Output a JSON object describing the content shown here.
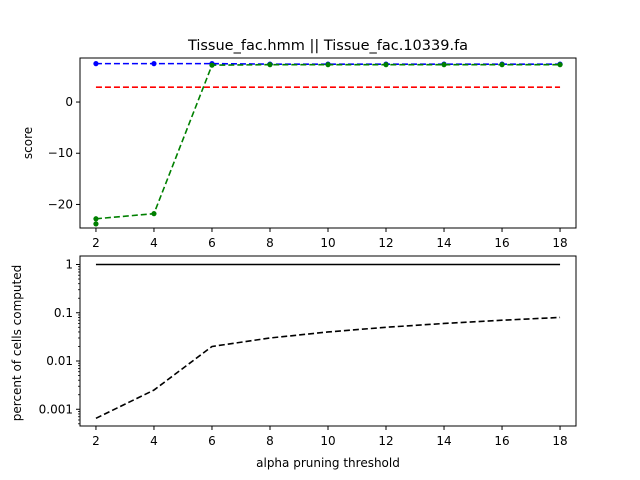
{
  "chart_data": [
    {
      "type": "line",
      "title": "Tissue_fac.hmm || Tissue_fac.10339.fa",
      "xlabel": "",
      "ylabel": "score",
      "xlim": [
        1.45,
        18.55
      ],
      "ylim": [
        -24.6,
        8.6
      ],
      "xticks": [
        2,
        4,
        6,
        8,
        10,
        12,
        14,
        16,
        18
      ],
      "xtick_labels": [
        "2",
        "4",
        "6",
        "8",
        "10",
        "12",
        "14",
        "16",
        "18"
      ],
      "yticks": [
        0,
        -10,
        -20
      ],
      "ytick_labels": [
        "0",
        "−10",
        "−20"
      ],
      "grid": false,
      "series": [
        {
          "color": "#0000ff",
          "style": "dashed",
          "markers": true,
          "x": [
            2,
            4,
            6,
            8,
            10,
            12,
            14,
            16,
            18
          ],
          "y": [
            7.5,
            7.5,
            7.5,
            7.4,
            7.4,
            7.4,
            7.4,
            7.4,
            7.4
          ]
        },
        {
          "color": "#ff0000",
          "style": "dashed",
          "markers": false,
          "x": [
            2,
            18
          ],
          "y": [
            2.9,
            2.9
          ]
        },
        {
          "color": "#008000",
          "style": "dashed",
          "markers": true,
          "x": [
            2,
            4,
            6,
            8,
            10,
            12,
            14,
            16,
            18
          ],
          "y": [
            -22.8,
            -21.8,
            7.2,
            7.3,
            7.3,
            7.3,
            7.3,
            7.3,
            7.3
          ]
        },
        {
          "color": "#008000",
          "style": "none",
          "markers": true,
          "x": [
            2
          ],
          "y": [
            -23.8
          ]
        }
      ]
    },
    {
      "type": "line",
      "title": "",
      "xlabel": "alpha pruning threshold",
      "ylabel": "percent of cells computed",
      "scale_y": "log",
      "xlim": [
        1.45,
        18.55
      ],
      "ylim": [
        0.00045,
        1.5
      ],
      "xticks": [
        2,
        4,
        6,
        8,
        10,
        12,
        14,
        16,
        18
      ],
      "xtick_labels": [
        "2",
        "4",
        "6",
        "8",
        "10",
        "12",
        "14",
        "16",
        "18"
      ],
      "yticks": [
        1,
        0.1,
        0.01,
        0.001
      ],
      "ytick_labels": [
        "1",
        "0.1",
        "0.01",
        "0.001"
      ],
      "grid": false,
      "series": [
        {
          "color": "#000000",
          "style": "solid",
          "markers": false,
          "x": [
            2,
            4,
            6,
            8,
            10,
            12,
            14,
            16,
            18
          ],
          "y": [
            1,
            1,
            1,
            1,
            1,
            1,
            1,
            1,
            1
          ]
        },
        {
          "color": "#000000",
          "style": "dashed",
          "markers": false,
          "x": [
            2,
            4,
            6,
            8,
            10,
            12,
            14,
            16,
            18
          ],
          "y": [
            0.00065,
            0.0025,
            0.02,
            0.03,
            0.04,
            0.05,
            0.06,
            0.07,
            0.08
          ]
        }
      ]
    }
  ]
}
